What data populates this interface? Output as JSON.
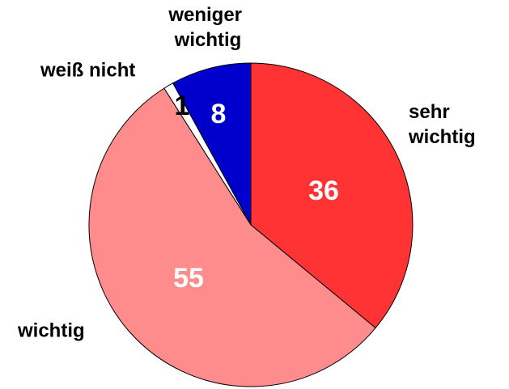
{
  "chart_data": {
    "type": "pie",
    "categories": [
      "sehr wichtig",
      "wichtig",
      "weiß nicht",
      "weniger wichtig"
    ],
    "values": [
      36,
      55,
      1,
      8
    ],
    "colors": [
      "#ff3333",
      "#ff8c8c",
      "#ffffff",
      "#0000cc"
    ],
    "value_label_colors": [
      "#ffffff",
      "#ffffff",
      "#000000",
      "#ffffff"
    ]
  }
}
